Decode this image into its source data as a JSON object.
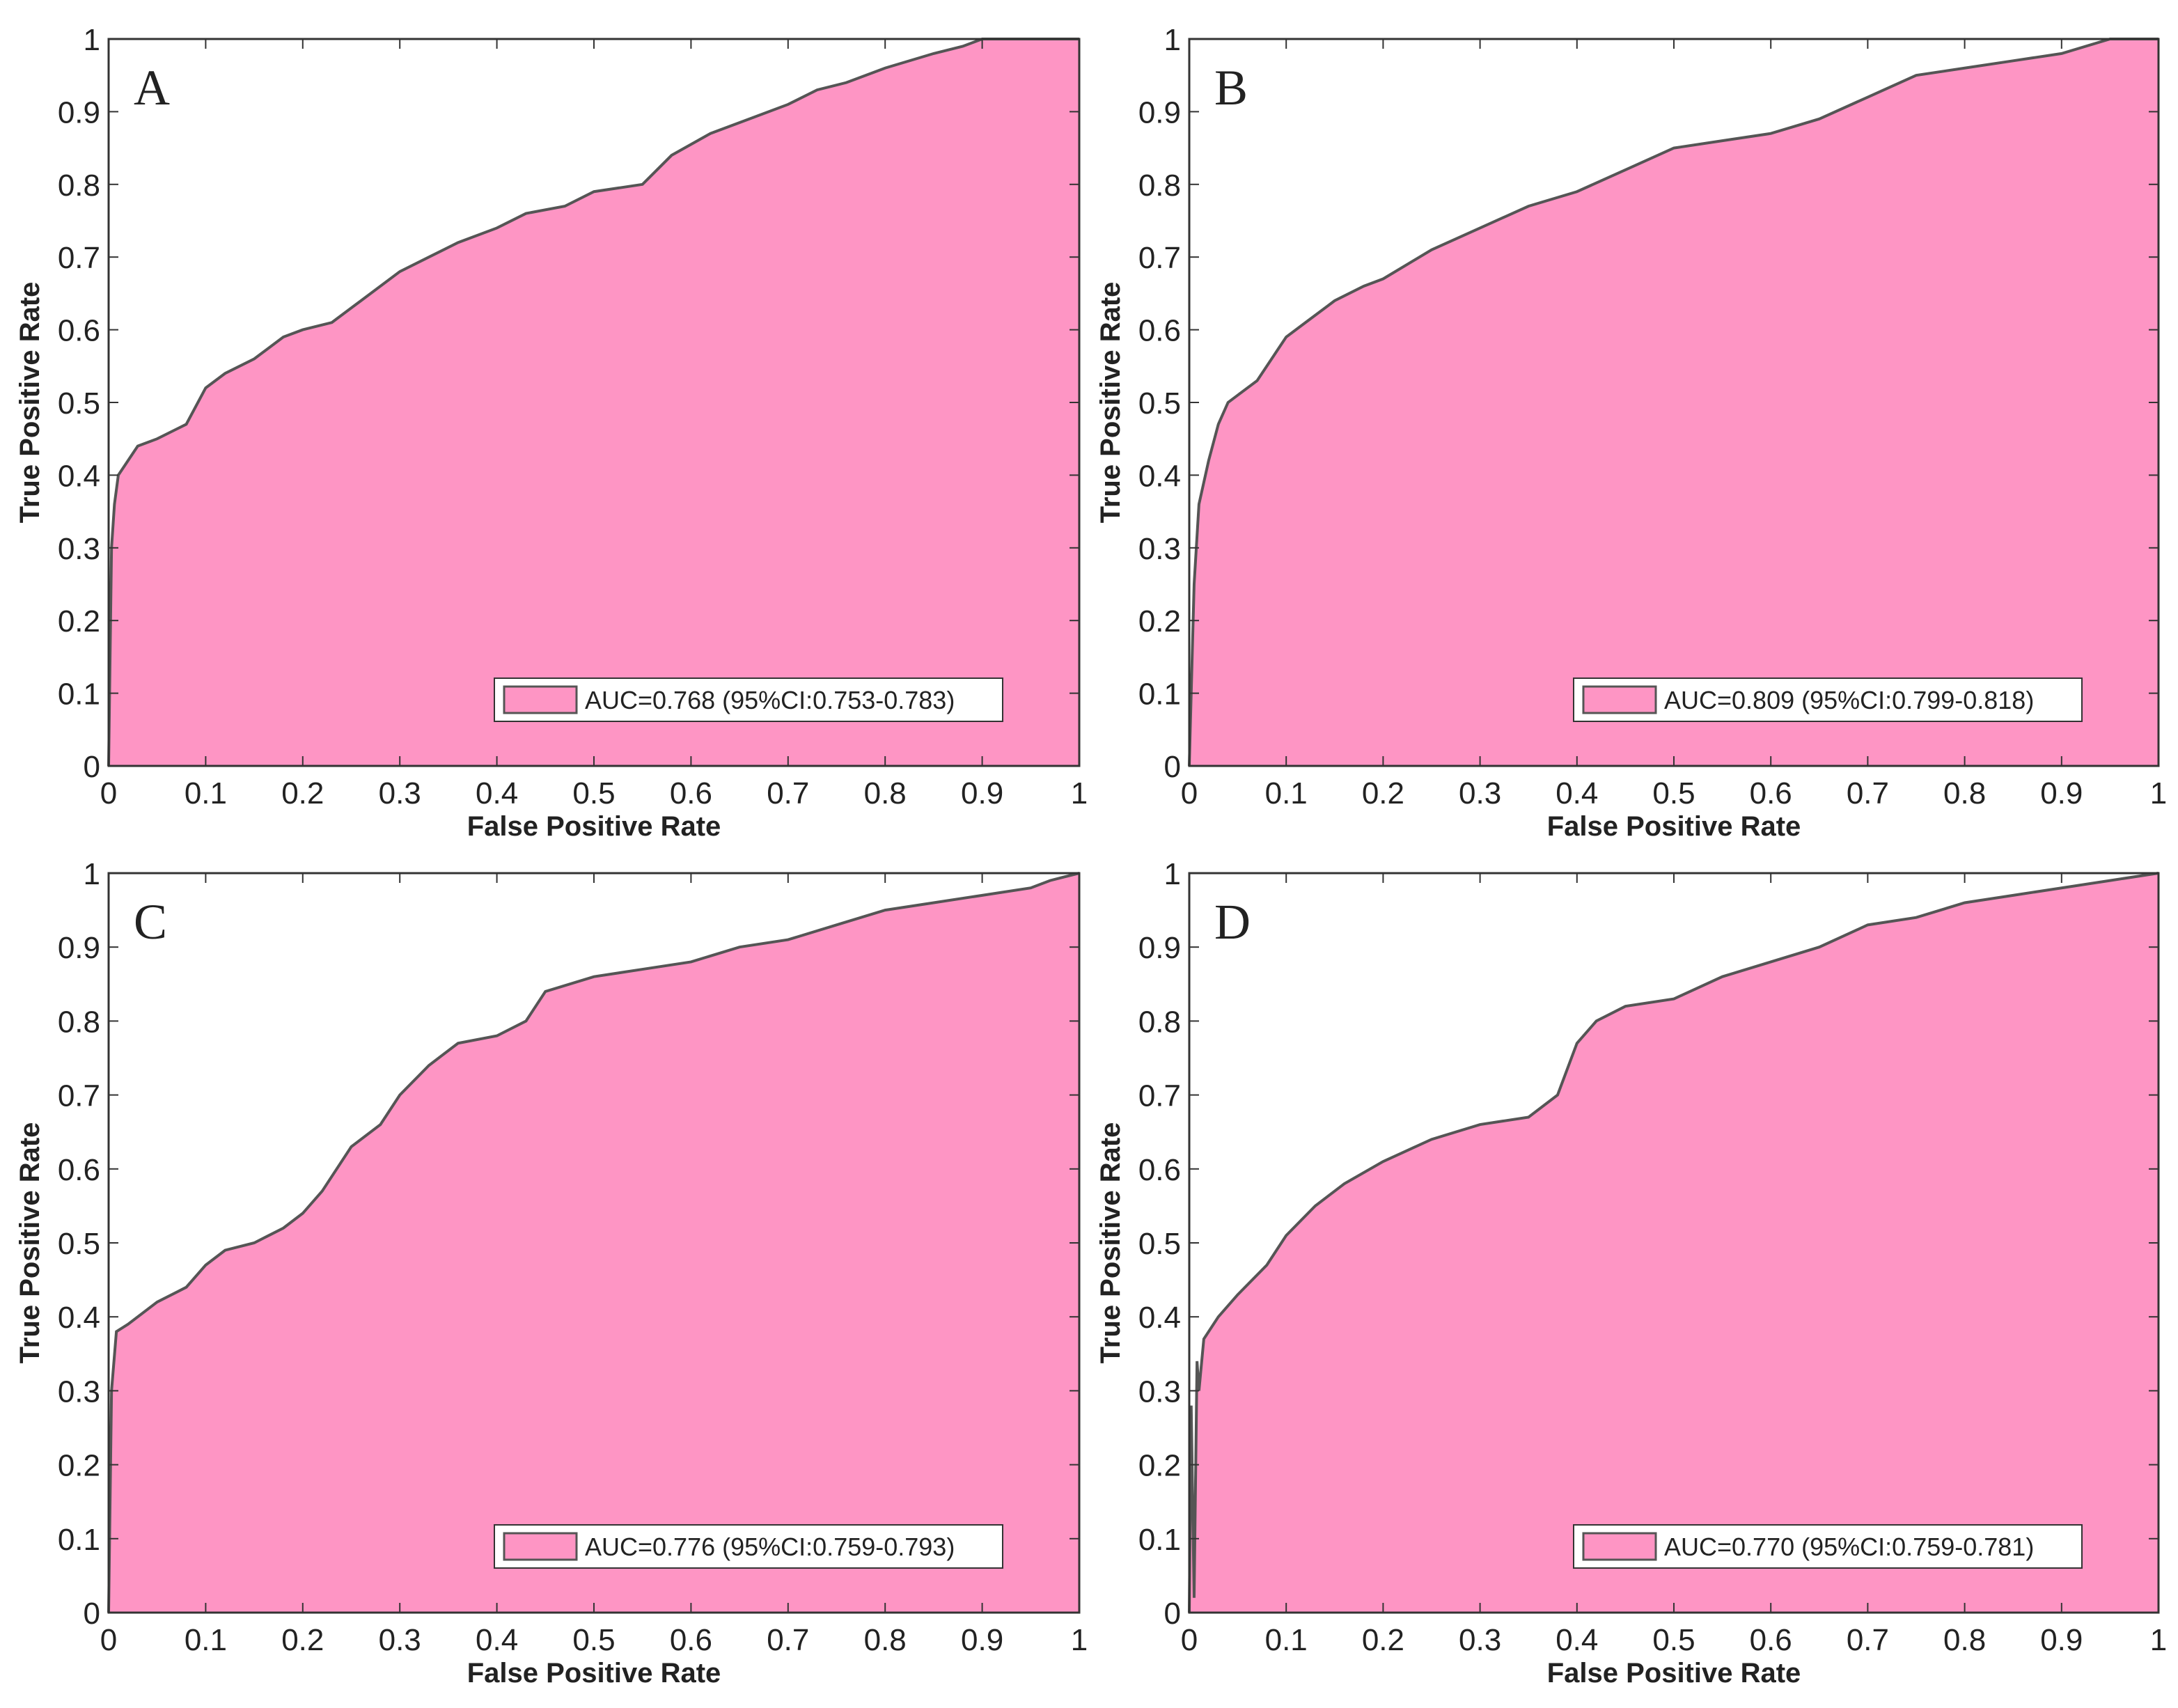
{
  "figure": {
    "panel_xlabel": "False Positive Rate",
    "panel_ylabel": "True Positive Rate"
  },
  "chart_data": [
    {
      "type": "area",
      "panel": "A",
      "xlabel": "False Positive Rate",
      "ylabel": "True Positive Rate",
      "xlim": [
        0,
        1
      ],
      "ylim": [
        0,
        1
      ],
      "xticks": [
        "0",
        "0.1",
        "0.2",
        "0.3",
        "0.4",
        "0.5",
        "0.6",
        "0.7",
        "0.8",
        "0.9",
        "1"
      ],
      "yticks": [
        "0",
        "0.1",
        "0.2",
        "0.3",
        "0.4",
        "0.5",
        "0.6",
        "0.7",
        "0.8",
        "0.9",
        "1"
      ],
      "legend": "AUC=0.768 (95%CI:0.753-0.783)",
      "legend_position": "bottom-right",
      "fill_color": "#FE95C4",
      "line_color": "#555555",
      "x": [
        0,
        0.003,
        0.006,
        0.01,
        0.02,
        0.03,
        0.05,
        0.08,
        0.1,
        0.12,
        0.15,
        0.18,
        0.2,
        0.23,
        0.26,
        0.3,
        0.33,
        0.36,
        0.4,
        0.43,
        0.47,
        0.5,
        0.55,
        0.58,
        0.62,
        0.66,
        0.7,
        0.73,
        0.76,
        0.8,
        0.85,
        0.88,
        0.9,
        0.95,
        1
      ],
      "y": [
        0,
        0.3,
        0.36,
        0.4,
        0.42,
        0.44,
        0.45,
        0.47,
        0.52,
        0.54,
        0.56,
        0.59,
        0.6,
        0.61,
        0.64,
        0.68,
        0.7,
        0.72,
        0.74,
        0.76,
        0.77,
        0.79,
        0.8,
        0.84,
        0.87,
        0.89,
        0.91,
        0.93,
        0.94,
        0.96,
        0.98,
        0.99,
        1,
        1,
        1
      ]
    },
    {
      "type": "area",
      "panel": "B",
      "xlabel": "False Positive Rate",
      "ylabel": "True Positive Rate",
      "xlim": [
        0,
        1
      ],
      "ylim": [
        0,
        1
      ],
      "xticks": [
        "0",
        "0.1",
        "0.2",
        "0.3",
        "0.4",
        "0.5",
        "0.6",
        "0.7",
        "0.8",
        "0.9",
        "1"
      ],
      "yticks": [
        "0",
        "0.1",
        "0.2",
        "0.3",
        "0.4",
        "0.5",
        "0.6",
        "0.7",
        "0.8",
        "0.9",
        "1"
      ],
      "legend": "AUC=0.809 (95%CI:0.799-0.818)",
      "legend_position": "bottom-right",
      "fill_color": "#FE95C4",
      "line_color": "#555555",
      "x": [
        0,
        0.005,
        0.01,
        0.02,
        0.03,
        0.04,
        0.05,
        0.07,
        0.09,
        0.1,
        0.12,
        0.15,
        0.18,
        0.2,
        0.25,
        0.3,
        0.35,
        0.4,
        0.45,
        0.5,
        0.55,
        0.6,
        0.65,
        0.7,
        0.75,
        0.8,
        0.85,
        0.9,
        0.95,
        1
      ],
      "y": [
        0,
        0.25,
        0.36,
        0.42,
        0.47,
        0.5,
        0.51,
        0.53,
        0.57,
        0.59,
        0.61,
        0.64,
        0.66,
        0.67,
        0.71,
        0.74,
        0.77,
        0.79,
        0.82,
        0.85,
        0.86,
        0.87,
        0.89,
        0.92,
        0.95,
        0.96,
        0.97,
        0.98,
        1,
        1
      ]
    },
    {
      "type": "area",
      "panel": "C",
      "xlabel": "False Positive Rate",
      "ylabel": "True Positive Rate",
      "xlim": [
        0,
        1
      ],
      "ylim": [
        0,
        1
      ],
      "xticks": [
        "0",
        "0.1",
        "0.2",
        "0.3",
        "0.4",
        "0.5",
        "0.6",
        "0.7",
        "0.8",
        "0.9",
        "1"
      ],
      "yticks": [
        "0",
        "0.1",
        "0.2",
        "0.3",
        "0.4",
        "0.5",
        "0.6",
        "0.7",
        "0.8",
        "0.9",
        "1"
      ],
      "legend": "AUC=0.776 (95%CI:0.759-0.793)",
      "legend_position": "bottom-right",
      "fill_color": "#FE95C4",
      "line_color": "#555555",
      "x": [
        0,
        0.003,
        0.008,
        0.02,
        0.05,
        0.08,
        0.1,
        0.12,
        0.15,
        0.18,
        0.2,
        0.22,
        0.25,
        0.28,
        0.3,
        0.33,
        0.36,
        0.4,
        0.43,
        0.45,
        0.5,
        0.55,
        0.6,
        0.65,
        0.7,
        0.75,
        0.8,
        0.85,
        0.9,
        0.95,
        0.97,
        1
      ],
      "y": [
        0,
        0.3,
        0.38,
        0.39,
        0.42,
        0.44,
        0.47,
        0.49,
        0.5,
        0.52,
        0.54,
        0.57,
        0.63,
        0.66,
        0.7,
        0.74,
        0.77,
        0.78,
        0.8,
        0.84,
        0.86,
        0.87,
        0.88,
        0.9,
        0.91,
        0.93,
        0.95,
        0.96,
        0.97,
        0.98,
        0.99,
        1
      ]
    },
    {
      "type": "area",
      "panel": "D",
      "xlabel": "False Positive Rate",
      "ylabel": "True Positive Rate",
      "xlim": [
        0,
        1
      ],
      "ylim": [
        0,
        1
      ],
      "xticks": [
        "0",
        "0.1",
        "0.2",
        "0.3",
        "0.4",
        "0.5",
        "0.6",
        "0.7",
        "0.8",
        "0.9",
        "1"
      ],
      "yticks": [
        "0",
        "0.1",
        "0.2",
        "0.3",
        "0.4",
        "0.5",
        "0.6",
        "0.7",
        "0.8",
        "0.9",
        "1"
      ],
      "legend": "AUC=0.770 (95%CI:0.759-0.781)",
      "legend_position": "bottom-right",
      "fill_color": "#FE95C4",
      "line_color": "#555555",
      "x": [
        0,
        0.002,
        0.005,
        0.008,
        0.01,
        0.015,
        0.02,
        0.03,
        0.05,
        0.08,
        0.1,
        0.13,
        0.16,
        0.2,
        0.25,
        0.3,
        0.35,
        0.38,
        0.4,
        0.42,
        0.45,
        0.5,
        0.55,
        0.6,
        0.65,
        0.7,
        0.75,
        0.8,
        0.85,
        0.9,
        0.95,
        1
      ],
      "y": [
        0,
        0.28,
        0.02,
        0.34,
        0.3,
        0.37,
        0.38,
        0.4,
        0.43,
        0.47,
        0.51,
        0.55,
        0.58,
        0.61,
        0.64,
        0.66,
        0.67,
        0.7,
        0.77,
        0.8,
        0.82,
        0.83,
        0.86,
        0.88,
        0.9,
        0.93,
        0.94,
        0.96,
        0.97,
        0.98,
        0.99,
        1
      ]
    }
  ]
}
